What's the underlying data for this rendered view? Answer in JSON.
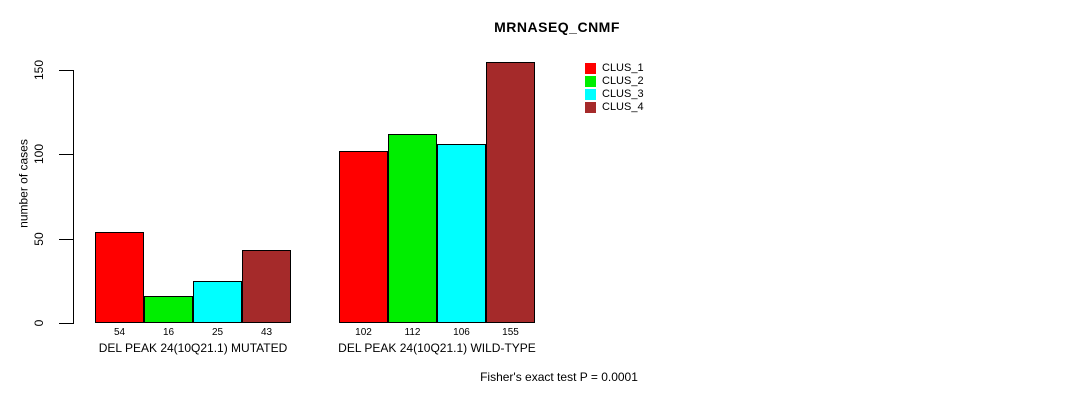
{
  "chart_data": {
    "type": "bar",
    "title": "MRNASEQ_CNMF",
    "ylabel": "number of cases",
    "yticks": [
      0,
      50,
      100,
      150
    ],
    "ylim": [
      0,
      155
    ],
    "grid": false,
    "legend_position": "top-right",
    "categories": [
      "DEL PEAK 24(10Q21.1) MUTATED",
      "DEL PEAK 24(10Q21.1) WILD-TYPE"
    ],
    "series": [
      {
        "name": "CLUS_1",
        "color": "#ff0000",
        "values": [
          54,
          102
        ]
      },
      {
        "name": "CLUS_2",
        "color": "#00ee00",
        "values": [
          16,
          112
        ]
      },
      {
        "name": "CLUS_3",
        "color": "#00ffff",
        "values": [
          25,
          106
        ]
      },
      {
        "name": "CLUS_4",
        "color": "#a52a2a",
        "values": [
          43,
          155
        ]
      }
    ],
    "bar_value_labels": [
      [
        54,
        16,
        25,
        43
      ],
      [
        102,
        112,
        106,
        155
      ]
    ],
    "annotation": "Fisher's exact test P = 0.0001"
  },
  "colors": {
    "background": "#ffffff",
    "axis": "#000000",
    "text": "#000000"
  }
}
